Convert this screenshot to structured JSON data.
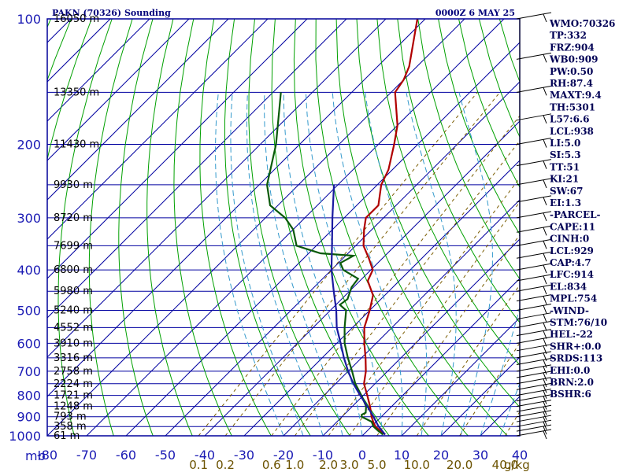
{
  "header": {
    "station": "PAKN (70326) Sounding",
    "time": "0000Z  6 MAY 25"
  },
  "chart_data": {
    "type": "line",
    "title": "PAKN (70326) Sounding",
    "subtitle": "0000Z  6 MAY 25",
    "xlabel": "",
    "ylabel": "mb",
    "xlim": [
      -80,
      0
    ],
    "ylim": [
      1000,
      100
    ],
    "y_scale": "log",
    "grid": true,
    "pressure_ticks": [
      "100",
      "200",
      "300",
      "400",
      "500",
      "600",
      "700",
      "800",
      "900",
      "1000"
    ],
    "temperature_ticks": [
      "-80",
      "-70",
      "-60",
      "-50",
      "-40",
      "-30",
      "-20",
      "-10",
      "0",
      "10",
      "20",
      "30",
      "40"
    ],
    "mixing_ratio_ticks": [
      "0.1",
      "0.2",
      "0.6",
      "1.0",
      "2.0",
      "3.0",
      "5.0",
      "10.0",
      "20.0",
      "40.0"
    ],
    "mixing_ratio_unit": "g/kg",
    "height_labels": [
      {
        "p": 100,
        "label": "16050 m"
      },
      {
        "p": 150,
        "label": "13350 m"
      },
      {
        "p": 200,
        "label": "11430 m"
      },
      {
        "p": 250,
        "label": "9930 m"
      },
      {
        "p": 300,
        "label": "8720 m"
      },
      {
        "p": 350,
        "label": "7699 m"
      },
      {
        "p": 400,
        "label": "6800 m"
      },
      {
        "p": 450,
        "label": "5980 m"
      },
      {
        "p": 500,
        "label": "5240 m"
      },
      {
        "p": 550,
        "label": "4552 m"
      },
      {
        "p": 600,
        "label": "3910 m"
      },
      {
        "p": 650,
        "label": "3316 m"
      },
      {
        "p": 700,
        "label": "2758 m"
      },
      {
        "p": 750,
        "label": "2224 m"
      },
      {
        "p": 800,
        "label": "1721 m"
      },
      {
        "p": 850,
        "label": "1248 m"
      },
      {
        "p": 900,
        "label": "793 m"
      },
      {
        "p": 950,
        "label": "358 m"
      },
      {
        "p": 1000,
        "label": "61 m"
      }
    ],
    "series": [
      {
        "name": "Temperature",
        "color": "#b00000",
        "points": [
          [
            993,
            5.5
          ],
          [
            975,
            3.5
          ],
          [
            950,
            1.0
          ],
          [
            925,
            -0.8
          ],
          [
            900,
            -2.5
          ],
          [
            850,
            -5.5
          ],
          [
            800,
            -9.0
          ],
          [
            750,
            -12.8
          ],
          [
            700,
            -15.5
          ],
          [
            650,
            -19.0
          ],
          [
            600,
            -23.0
          ],
          [
            550,
            -27.0
          ],
          [
            500,
            -30.0
          ],
          [
            460,
            -33.0
          ],
          [
            425,
            -38.0
          ],
          [
            400,
            -39.5
          ],
          [
            375,
            -43.5
          ],
          [
            350,
            -48.0
          ],
          [
            320,
            -52.0
          ],
          [
            300,
            -54.5
          ],
          [
            280,
            -54.5
          ],
          [
            250,
            -59.0
          ],
          [
            230,
            -61.0
          ],
          [
            200,
            -66.0
          ],
          [
            180,
            -70.0
          ],
          [
            150,
            -79.0
          ],
          [
            140,
            -80.0
          ],
          [
            130,
            -82.0
          ],
          [
            100,
            -92.0
          ]
        ]
      },
      {
        "name": "Dewpoint",
        "color": "#0a5a0a",
        "points": [
          [
            993,
            5.0
          ],
          [
            975,
            3.0
          ],
          [
            950,
            0.5
          ],
          [
            925,
            -1.2
          ],
          [
            900,
            -5.0
          ],
          [
            890,
            -5.5
          ],
          [
            880,
            -5.0
          ],
          [
            850,
            -6.5
          ],
          [
            800,
            -10.5
          ],
          [
            750,
            -15.0
          ],
          [
            700,
            -19.0
          ],
          [
            650,
            -23.5
          ],
          [
            600,
            -28.0
          ],
          [
            550,
            -32.0
          ],
          [
            500,
            -36.0
          ],
          [
            485,
            -39.0
          ],
          [
            470,
            -38.5
          ],
          [
            440,
            -40.5
          ],
          [
            420,
            -41.0
          ],
          [
            400,
            -47.0
          ],
          [
            385,
            -49.5
          ],
          [
            370,
            -48.0
          ],
          [
            365,
            -57.0
          ],
          [
            350,
            -65.0
          ],
          [
            320,
            -70.0
          ],
          [
            300,
            -75.0
          ],
          [
            280,
            -82.0
          ],
          [
            250,
            -88.0
          ],
          [
            200,
            -96.0
          ],
          [
            150,
            -108.0
          ]
        ]
      },
      {
        "name": "Parcel",
        "color": "#1a1aa0",
        "points": [
          [
            993,
            5.5
          ],
          [
            950,
            1.8
          ],
          [
            929,
            0.2
          ],
          [
            900,
            -2.0
          ],
          [
            850,
            -6.2
          ],
          [
            800,
            -10.8
          ],
          [
            750,
            -15.5
          ],
          [
            700,
            -20.0
          ],
          [
            650,
            -24.5
          ],
          [
            600,
            -29.0
          ],
          [
            550,
            -34.0
          ],
          [
            500,
            -38.5
          ],
          [
            450,
            -44.0
          ],
          [
            400,
            -50.0
          ],
          [
            350,
            -56.0
          ],
          [
            300,
            -63.0
          ],
          [
            250,
            -71.0
          ]
        ]
      }
    ]
  },
  "indices": [
    "WMO:70326",
    "TP:332",
    "FRZ:904",
    "WB0:909",
    "PW:0.50",
    "RH:87.4",
    "MAXT:9.4",
    "TH:5301",
    "L57:6.6",
    "LCL:938",
    "LI:5.0",
    "SI:5.3",
    "TT:51",
    "KI:21",
    "SW:67",
    "EI:1.3",
    "-PARCEL-",
    "CAPE:11",
    "CINH:0",
    "LCL:929",
    "CAP:4.7",
    "LFC:914",
    "EL:834",
    "MPL:754",
    "-WIND-",
    "STM:76/10",
    "HEL:-22",
    "SHR+:0.0",
    "SRDS:113",
    "EHI:0.0",
    "BRN:2.0",
    "BSHR:6"
  ],
  "colors": {
    "frame": "#00009a",
    "isotherm": "#0000a0",
    "dry_adiabat": "#00a000",
    "moist_adiabat": "#3399cc",
    "mixing_ratio": "#7a5c00",
    "temperature": "#b00000",
    "dewpoint": "#0a5a0a",
    "parcel": "#1a1aa0"
  }
}
